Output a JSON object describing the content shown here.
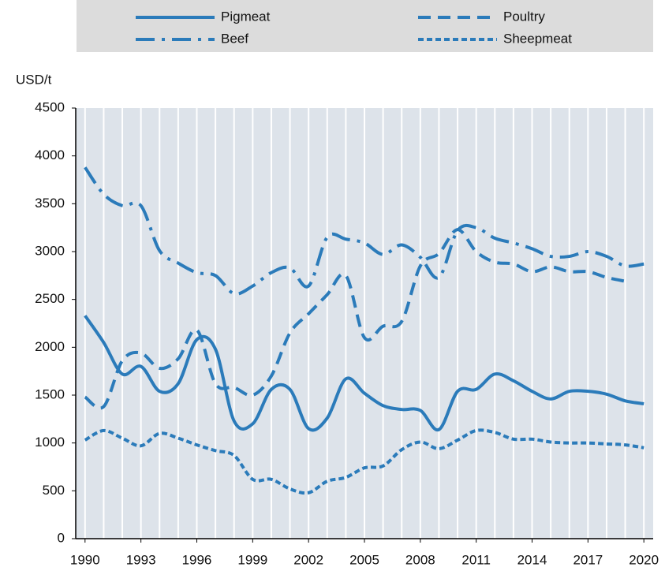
{
  "chart_data": {
    "type": "line",
    "y_label": "USD/t",
    "x": [
      1990,
      1991,
      1992,
      1993,
      1994,
      1995,
      1996,
      1997,
      1998,
      1999,
      2000,
      2001,
      2002,
      2003,
      2004,
      2005,
      2006,
      2007,
      2008,
      2009,
      2010,
      2011,
      2012,
      2013,
      2014,
      2015,
      2016,
      2017,
      2018,
      2019,
      2020
    ],
    "xlim": [
      1989.5,
      2020.5
    ],
    "xticks": [
      1990,
      1993,
      1996,
      1999,
      2002,
      2005,
      2008,
      2011,
      2014,
      2017,
      2020
    ],
    "ylim": [
      0,
      4500
    ],
    "yticks": [
      0,
      500,
      1000,
      1500,
      2000,
      2500,
      3000,
      3500,
      4000,
      4500
    ],
    "grid": true,
    "legend": "top",
    "series": [
      {
        "name": "Pigmeat",
        "color": "#2b7bba",
        "style": "solid",
        "values": [
          2330,
          2050,
          1720,
          1800,
          1540,
          1620,
          2080,
          1980,
          1230,
          1200,
          1560,
          1560,
          1150,
          1260,
          1670,
          1520,
          1390,
          1350,
          1340,
          1140,
          1540,
          1560,
          1720,
          1650,
          1540,
          1460,
          1540,
          1540,
          1510,
          1440,
          1410
        ]
      },
      {
        "name": "Poultry",
        "color": "#2b7bba",
        "style": "dashed",
        "values": [
          1480,
          1380,
          1860,
          1940,
          1780,
          1880,
          2180,
          1620,
          1580,
          1500,
          1700,
          2150,
          2350,
          2550,
          2750,
          2100,
          2220,
          2270,
          2850,
          2980,
          3230,
          3000,
          2890,
          2870,
          2790,
          2840,
          2790,
          2790,
          2730,
          2690,
          null
        ]
      },
      {
        "name": "Beef",
        "color": "#2b7bba",
        "style": "dashdot",
        "values": [
          3880,
          3600,
          3480,
          3480,
          3010,
          2880,
          2780,
          2750,
          2560,
          2640,
          2780,
          2830,
          2640,
          3150,
          3130,
          3090,
          2970,
          3070,
          2940,
          2730,
          3220,
          3250,
          3140,
          3090,
          3030,
          2950,
          2950,
          3000,
          2950,
          2850,
          2870
        ]
      },
      {
        "name": "Sheepmeat",
        "color": "#2b7bba",
        "style": "dotted",
        "values": [
          1030,
          1130,
          1050,
          970,
          1100,
          1050,
          980,
          920,
          870,
          620,
          620,
          520,
          480,
          600,
          640,
          740,
          760,
          930,
          1010,
          940,
          1030,
          1130,
          1110,
          1040,
          1040,
          1010,
          1000,
          1000,
          990,
          980,
          950
        ]
      }
    ]
  }
}
